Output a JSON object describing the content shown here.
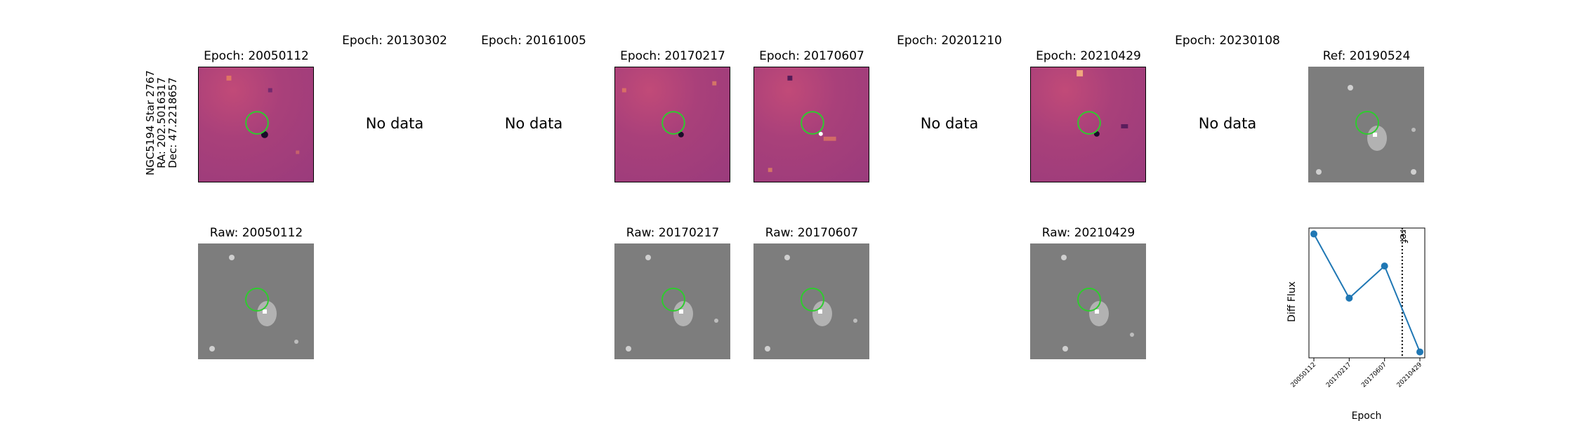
{
  "row_label": {
    "object": "NGC5194 Star 2767",
    "ra": "RA: 202.5016317",
    "dec": "Dec: 47.2218657"
  },
  "no_data_text": "No data",
  "diff_titles": [
    "Epoch: 20050112",
    "Epoch: 20130302",
    "Epoch: 20161005",
    "Epoch: 20170217",
    "Epoch: 20170607",
    "Epoch: 20201210",
    "Epoch: 20210429",
    "Epoch: 20230108"
  ],
  "ref_title": "Ref: 20190524",
  "raw_titles": [
    "Raw: 20050112",
    "Raw: 20170217",
    "Raw: 20170607",
    "Raw: 20210429"
  ],
  "colors": {
    "aperture": "#2ecc2e",
    "line": "#1f77b4",
    "diff_base": "#9a3b7c",
    "raw_base": "#7d7d7d"
  },
  "chart_data": {
    "type": "line",
    "x": [
      "20050112",
      "20170217",
      "20170607",
      "20210429"
    ],
    "series": [
      {
        "values": [
          0.93,
          0.37,
          0.65,
          -0.1
        ]
      }
    ],
    "xlabel": "Epoch",
    "ylabel": "Diff Flux",
    "ref_line_label": "ref",
    "ref_line_position": "between 20170607 and 20210429",
    "y_ticks_shown": false,
    "grid": false
  }
}
